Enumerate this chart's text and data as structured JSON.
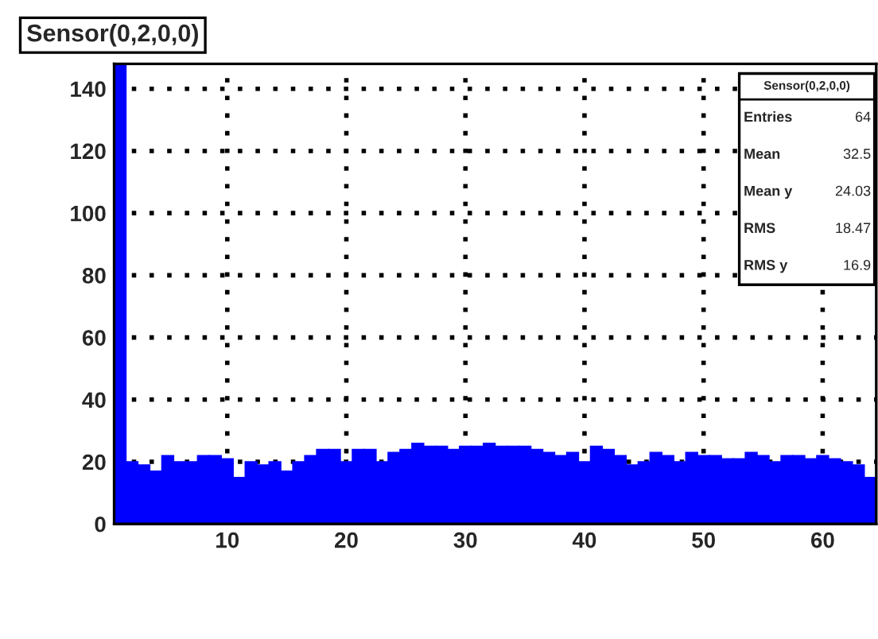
{
  "chart_data": {
    "type": "histogram",
    "title": "Sensor(0,2,0,0)",
    "bins": [
      0.5,
      1.5,
      2.5,
      3.5,
      4.5,
      5.5,
      6.5,
      7.5,
      8.5,
      9.5,
      10.5,
      11.5,
      12.5,
      13.5,
      14.5,
      15.5,
      16.5,
      17.5,
      18.5,
      19.5,
      20.5,
      21.5,
      22.5,
      23.5,
      24.5,
      25.5,
      26.5,
      27.5,
      28.5,
      29.5,
      30.5,
      31.5,
      32.5,
      33.5,
      34.5,
      35.5,
      36.5,
      37.5,
      38.5,
      39.5,
      40.5,
      41.5,
      42.5,
      43.5,
      44.5,
      45.5,
      46.5,
      47.5,
      48.5,
      49.5,
      50.5,
      51.5,
      52.5,
      53.5,
      54.5,
      55.5,
      56.5,
      57.5,
      58.5,
      59.5,
      60.5,
      61.5,
      62.5,
      63.5,
      64.5
    ],
    "values": [
      148,
      20,
      19,
      17,
      22,
      20,
      20,
      22,
      22,
      21,
      15,
      20,
      19,
      20,
      17,
      20,
      22,
      24,
      24,
      20,
      24,
      24,
      20,
      23,
      24,
      26,
      25,
      25,
      24,
      25,
      25,
      26,
      25,
      25,
      25,
      24,
      23,
      22,
      23,
      20,
      25,
      24,
      22,
      19,
      20,
      23,
      22,
      20,
      23,
      22,
      22,
      21,
      21,
      23,
      22,
      20,
      22,
      22,
      21,
      22,
      21,
      20,
      19,
      15
    ],
    "color": "#0000ff",
    "xlim": [
      0.5,
      64.5
    ],
    "xticks": [
      10,
      20,
      30,
      40,
      50,
      60
    ],
    "ylim": [
      0,
      148
    ],
    "yticks": [
      0,
      20,
      40,
      60,
      80,
      100,
      120,
      140
    ],
    "grid": true,
    "annotations": [
      "Sensor(0,2,0,0)",
      "Entries",
      "64",
      "Mean",
      "32.5",
      "Mean y",
      "24.03",
      "RMS",
      "18.47",
      "RMS y",
      "16.9"
    ]
  }
}
